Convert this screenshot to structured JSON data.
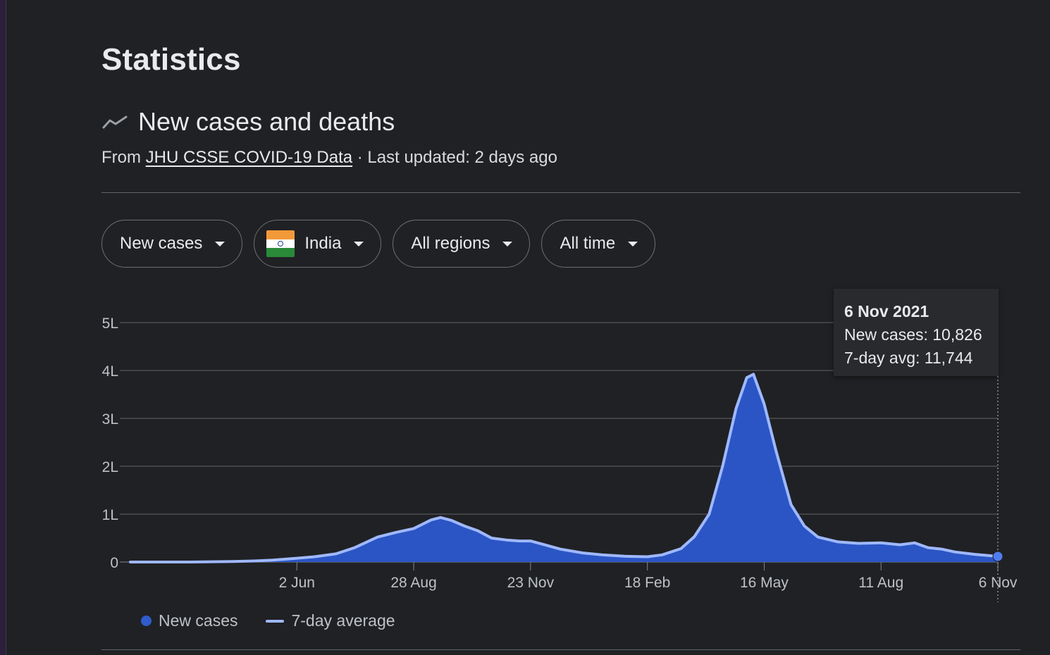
{
  "page": {
    "heading": "Statistics",
    "section_title": "New cases and deaths",
    "source_prefix": "From ",
    "source_link": "JHU CSSE COVID-19 Data",
    "updated": " · Last updated: 2 days ago"
  },
  "filters": [
    {
      "label": "New cases"
    },
    {
      "label": "India",
      "flag": "india-flag"
    },
    {
      "label": "All regions"
    },
    {
      "label": "All time"
    }
  ],
  "tooltip": {
    "date": "6 Nov 2021",
    "cases": "New cases: 10,826",
    "avg": "7-day avg: 11,744"
  },
  "legend": {
    "cases": "New cases",
    "avg": "7-day average"
  },
  "colors": {
    "area": "#2b55c4",
    "line": "#9fb8ff",
    "grid": "#5f6368",
    "text": "#bdc1c6",
    "background": "#202124"
  },
  "chart_data": {
    "type": "area",
    "y_ticks": [
      "0",
      "1L",
      "2L",
      "3L",
      "4L",
      "5L"
    ],
    "y_tick_values": [
      0,
      100000,
      200000,
      300000,
      400000,
      500000
    ],
    "ylim": [
      0,
      500000
    ],
    "x_ticks": [
      "2 Jun",
      "28 Aug",
      "23 Nov",
      "18 Feb",
      "16 May",
      "11 Aug",
      "6 Nov"
    ],
    "x_tick_values": [
      "2020-06-02",
      "2020-08-28",
      "2020-11-23",
      "2021-02-18",
      "2021-05-16",
      "2021-08-11",
      "2021-11-06"
    ],
    "xlim": [
      "2020-01-30",
      "2021-11-06"
    ],
    "series": [
      {
        "name": "7-day average",
        "points": [
          [
            "2020-01-30",
            0
          ],
          [
            "2020-03-15",
            20
          ],
          [
            "2020-04-15",
            1000
          ],
          [
            "2020-05-01",
            2200
          ],
          [
            "2020-05-15",
            4000
          ],
          [
            "2020-06-02",
            8000
          ],
          [
            "2020-06-15",
            11000
          ],
          [
            "2020-07-01",
            17000
          ],
          [
            "2020-07-15",
            30000
          ],
          [
            "2020-08-01",
            52000
          ],
          [
            "2020-08-15",
            62000
          ],
          [
            "2020-08-28",
            70000
          ],
          [
            "2020-09-10",
            88000
          ],
          [
            "2020-09-17",
            93000
          ],
          [
            "2020-09-25",
            87000
          ],
          [
            "2020-10-05",
            75000
          ],
          [
            "2020-10-15",
            65000
          ],
          [
            "2020-10-25",
            50000
          ],
          [
            "2020-11-05",
            46000
          ],
          [
            "2020-11-15",
            44000
          ],
          [
            "2020-11-23",
            44000
          ],
          [
            "2020-12-01",
            38000
          ],
          [
            "2020-12-15",
            27000
          ],
          [
            "2021-01-01",
            19000
          ],
          [
            "2021-01-15",
            15000
          ],
          [
            "2021-02-01",
            12000
          ],
          [
            "2021-02-18",
            11000
          ],
          [
            "2021-03-01",
            15000
          ],
          [
            "2021-03-15",
            28000
          ],
          [
            "2021-03-25",
            53000
          ],
          [
            "2021-04-05",
            100000
          ],
          [
            "2021-04-15",
            200000
          ],
          [
            "2021-04-25",
            320000
          ],
          [
            "2021-05-03",
            385000
          ],
          [
            "2021-05-08",
            392000
          ],
          [
            "2021-05-16",
            330000
          ],
          [
            "2021-05-25",
            230000
          ],
          [
            "2021-06-05",
            120000
          ],
          [
            "2021-06-15",
            75000
          ],
          [
            "2021-06-25",
            52000
          ],
          [
            "2021-07-10",
            42000
          ],
          [
            "2021-07-25",
            39000
          ],
          [
            "2021-08-11",
            40000
          ],
          [
            "2021-08-25",
            36000
          ],
          [
            "2021-09-05",
            40000
          ],
          [
            "2021-09-15",
            30000
          ],
          [
            "2021-09-25",
            27000
          ],
          [
            "2021-10-05",
            21000
          ],
          [
            "2021-10-20",
            16000
          ],
          [
            "2021-11-06",
            11744
          ]
        ]
      }
    ],
    "highlight": {
      "date": "2021-11-06",
      "new_cases": 10826,
      "avg": 11744
    }
  }
}
